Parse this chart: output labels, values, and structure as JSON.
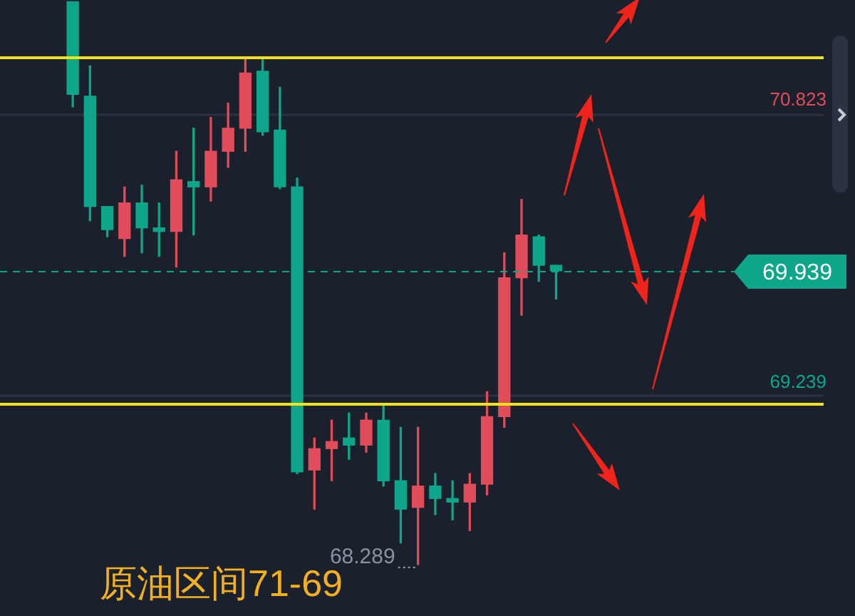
{
  "chart_data": {
    "type": "candlestick",
    "categories": [
      null,
      null,
      null,
      null,
      null,
      null,
      null,
      null,
      null,
      null,
      null,
      null,
      null,
      null,
      null,
      null,
      null,
      null,
      null,
      null,
      null,
      null,
      null,
      null,
      null,
      null,
      null,
      null,
      null,
      null,
      null,
      null,
      null,
      null,
      null,
      null,
      null,
      null,
      null,
      null,
      null,
      null,
      null,
      null
    ],
    "ohlc": [
      [
        71.45,
        71.45,
        70.86,
        70.93
      ],
      [
        70.92,
        71.09,
        70.22,
        70.3
      ],
      [
        70.3,
        70.3,
        70.13,
        70.17
      ],
      [
        70.12,
        70.41,
        70.02,
        70.32
      ],
      [
        70.32,
        70.42,
        70.04,
        70.18
      ],
      [
        70.18,
        70.32,
        70.02,
        70.16
      ],
      [
        70.16,
        70.61,
        69.96,
        70.45
      ],
      [
        70.44,
        70.74,
        70.14,
        70.41
      ],
      [
        70.41,
        70.8,
        70.33,
        70.61
      ],
      [
        70.61,
        70.88,
        70.52,
        70.74
      ],
      [
        70.74,
        71.14,
        70.61,
        71.05
      ],
      [
        71.06,
        71.14,
        70.7,
        70.72
      ],
      [
        70.73,
        70.97,
        70.4,
        70.41
      ],
      [
        70.41,
        70.46,
        68.8,
        68.81
      ],
      [
        68.82,
        69.0,
        68.6,
        68.94
      ],
      [
        68.94,
        69.1,
        68.76,
        68.98
      ],
      [
        69.0,
        69.14,
        68.88,
        68.96
      ],
      [
        68.96,
        69.14,
        68.92,
        69.1
      ],
      [
        69.1,
        69.18,
        68.73,
        68.76
      ],
      [
        68.76,
        69.06,
        68.41,
        68.6
      ],
      [
        68.61,
        69.06,
        68.289,
        68.73
      ],
      [
        68.73,
        68.8,
        68.57,
        68.66
      ],
      [
        68.66,
        68.76,
        68.54,
        68.64
      ],
      [
        68.64,
        68.8,
        68.48,
        68.74
      ],
      [
        68.74,
        69.26,
        68.68,
        69.12
      ],
      [
        69.12,
        70.04,
        69.06,
        69.9
      ],
      [
        69.9,
        70.34,
        69.69,
        70.14
      ],
      [
        70.13,
        70.14,
        69.88,
        69.97
      ],
      [
        69.97,
        69.97,
        69.78,
        69.939
      ],
      null,
      null,
      null,
      null,
      null,
      null,
      null,
      null,
      null,
      null,
      null,
      null,
      null,
      null,
      null
    ],
    "colors": [
      "#0ea68a",
      "#0ea68a",
      "#0ea68a",
      "#e04c5a",
      "#0ea68a",
      "#0ea68a",
      "#e04c5a",
      "#0ea68a",
      "#e04c5a",
      "#e04c5a",
      "#e04c5a",
      "#0ea68a",
      "#0ea68a",
      "#0ea68a",
      "#e04c5a",
      "#e04c5a",
      "#0ea68a",
      "#e04c5a",
      "#0ea68a",
      "#0ea68a",
      "#e04c5a",
      "#0ea68a",
      "#0ea68a",
      "#e04c5a",
      "#e04c5a",
      "#e04c5a",
      "#e04c5a",
      "#0ea68a",
      "#0ea68a",
      null,
      null,
      null,
      null,
      null,
      null,
      null,
      null,
      null,
      null,
      null,
      null,
      null,
      null,
      null
    ],
    "ylim": [
      68.0,
      71.46
    ],
    "yticks": [
      70.823,
      69.239
    ],
    "grid": "y",
    "tick_labels": "y",
    "legend": false,
    "ref_lines": [
      {
        "axis": "y",
        "value": 71.14,
        "color": "#f2e313",
        "line_style": "solid"
      },
      {
        "axis": "y",
        "value": 69.19,
        "color": "#f2e313",
        "line_style": "solid"
      },
      {
        "axis": "y",
        "value": 69.939,
        "label": "69.939",
        "color": "#0ea68a",
        "line_style": "dashed"
      }
    ],
    "annotations": [
      "68.289",
      "原油区间71-69"
    ]
  }
}
